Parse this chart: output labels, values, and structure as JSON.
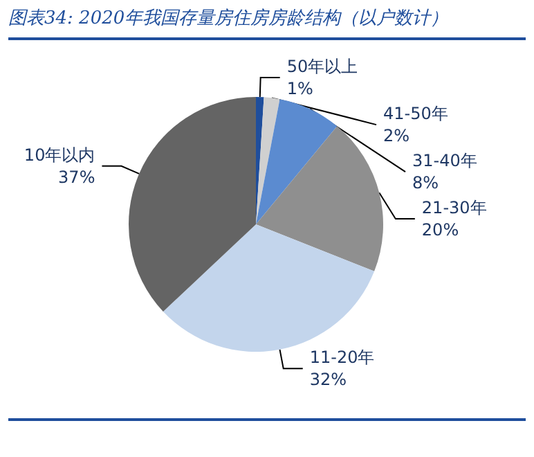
{
  "chart_data": {
    "type": "pie",
    "title": "图表34:  2020年我国存量房住房房龄结构（以户数计）",
    "categories": [
      "50年以上",
      "41-50年",
      "31-40年",
      "21-30年",
      "11-20年",
      "10年以内"
    ],
    "values": [
      1,
      2,
      8,
      20,
      32,
      37
    ],
    "value_labels": [
      "1%",
      "2%",
      "8%",
      "20%",
      "32%",
      "37%"
    ],
    "colors": [
      "#1f4e9c",
      "#d0d0d0",
      "#5b8bd0",
      "#8f8f8f",
      "#c3d5ec",
      "#646464"
    ],
    "legend": false
  }
}
